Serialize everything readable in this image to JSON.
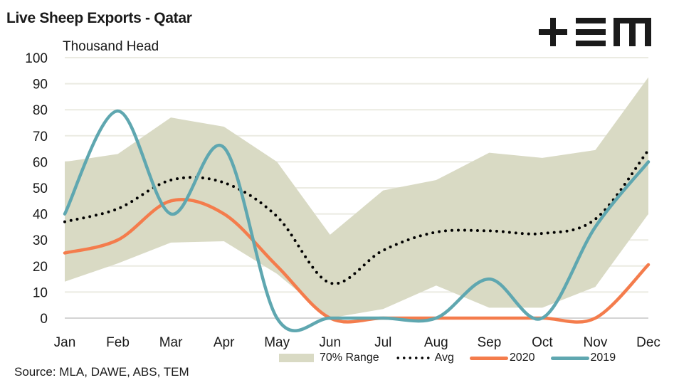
{
  "header": {
    "title": "Live Sheep Exports - Qatar",
    "logo_text": "+EM",
    "logo_icon": "tem-logo-icon"
  },
  "footer": {
    "source": "Source: MLA, DAWE, ABS, TEM"
  },
  "colors": {
    "range": "#d9dac4",
    "avg": "#000000",
    "s2020": "#f47c4c",
    "s2019": "#5fa7b0",
    "grid": "#ebebe2",
    "baseline": "#d4d4d4"
  },
  "chart_data": {
    "type": "line",
    "title": "Live Sheep Exports - Qatar",
    "xlabel": "",
    "ylabel": "Thousand Head",
    "ylim": [
      0,
      100
    ],
    "yticks": [
      0,
      10,
      20,
      30,
      40,
      50,
      60,
      70,
      80,
      90,
      100
    ],
    "grid": true,
    "legend_position": "bottom",
    "categories": [
      "Jan",
      "Feb",
      "Mar",
      "Apr",
      "May",
      "Jun",
      "Jul",
      "Aug",
      "Sep",
      "Oct",
      "Nov",
      "Dec"
    ],
    "range": {
      "name": "70% Range",
      "upper": [
        60,
        63,
        77,
        73.5,
        60,
        32,
        49,
        53,
        63.5,
        61.5,
        64.5,
        92.5
      ],
      "lower": [
        14,
        21,
        29,
        29.5,
        17,
        0,
        3.5,
        12.5,
        4,
        4,
        12,
        40
      ]
    },
    "series": [
      {
        "name": "Avg",
        "style": "dotted",
        "values": [
          37,
          42,
          53,
          52,
          39,
          13.5,
          26,
          33,
          33.5,
          32.5,
          38,
          64.5
        ]
      },
      {
        "name": "2020",
        "style": "solid",
        "values": [
          25,
          30,
          45,
          40,
          20,
          0,
          0,
          0,
          0,
          0,
          0,
          20.5
        ]
      },
      {
        "name": "2019",
        "style": "solid",
        "values": [
          40,
          79.5,
          40,
          65.5,
          0,
          0,
          0,
          0,
          15,
          0,
          35,
          60
        ]
      }
    ],
    "legend": [
      "70% Range",
      "Avg",
      "2020",
      "2019"
    ]
  }
}
